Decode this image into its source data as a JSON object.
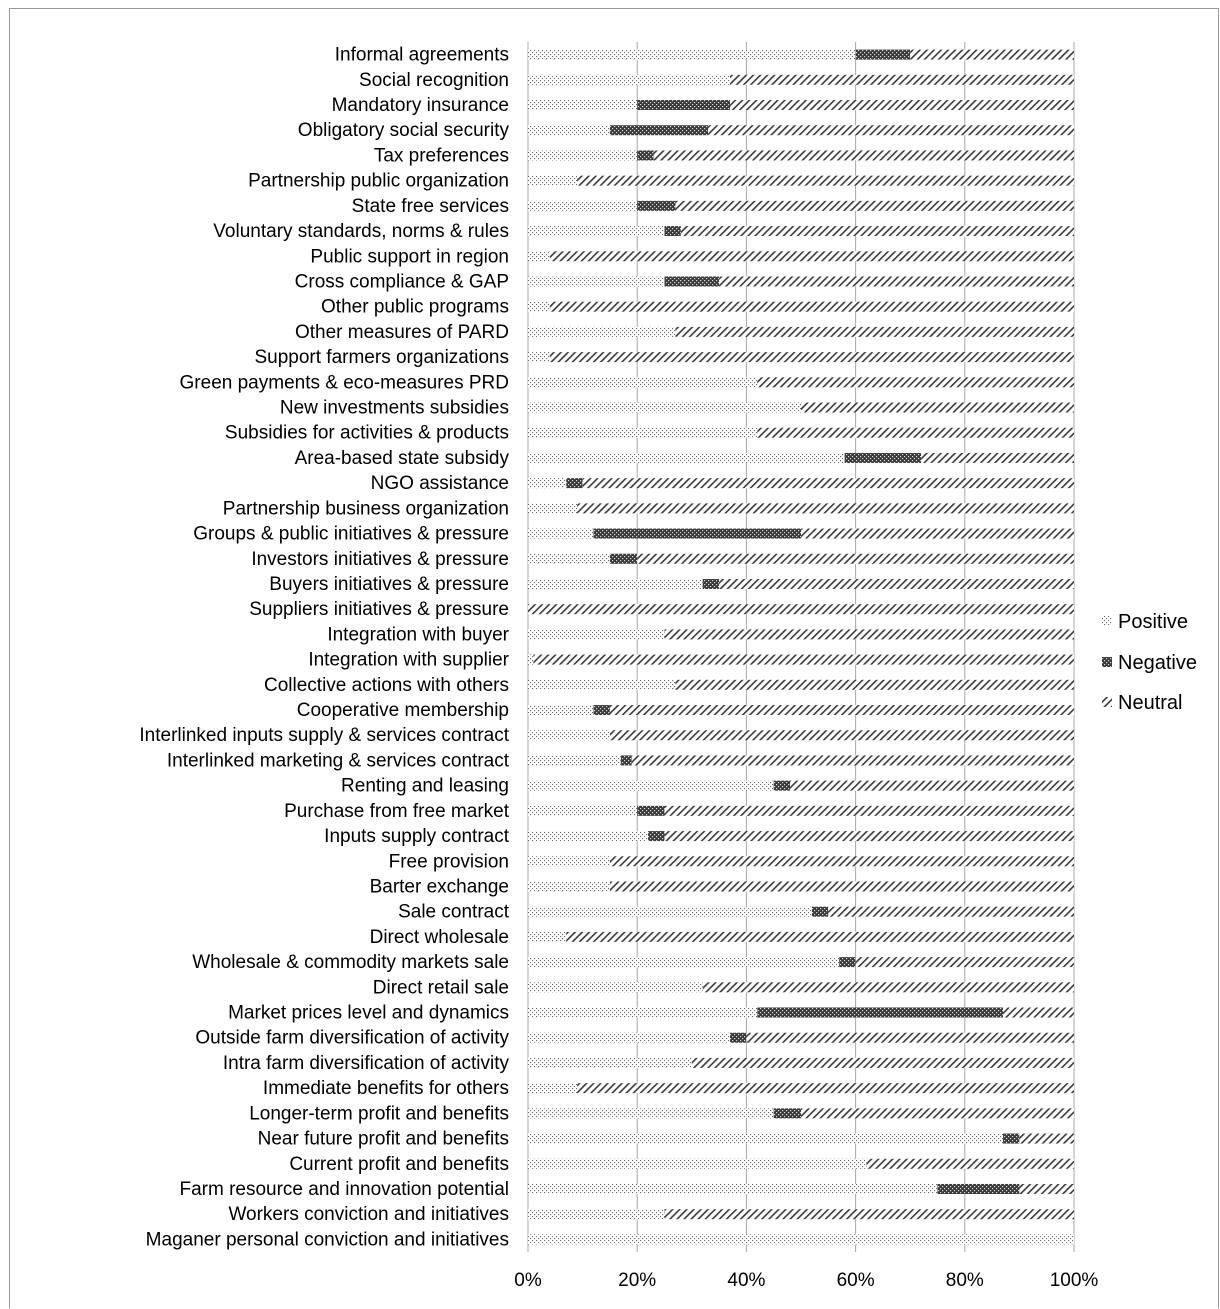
{
  "chart_data": {
    "type": "bar",
    "stacked": true,
    "orientation": "horizontal",
    "title": "",
    "xlabel": "",
    "ylabel": "",
    "xlim": [
      0,
      100
    ],
    "x_ticks": [
      "0%",
      "20%",
      "40%",
      "60%",
      "80%",
      "100%"
    ],
    "grid": "vertical",
    "legend_position": "right",
    "categories": [
      "Informal agreements",
      "Social recognition",
      "Mandatory insurance",
      "Obligatory social security",
      "Tax preferences",
      "Partnership public organization",
      "State free services",
      "Voluntary standards, norms & rules",
      "Public support in region",
      "Cross compliance & GAP",
      "Other public programs",
      "Other measures of PARD",
      "Support farmers organizations",
      "Green payments & eco-measures PRD",
      "New investments subsidies",
      "Subsidies for activities & products",
      "Area-based state subsidy",
      "NGO assistance",
      "Partnership business organization",
      "Groups & public initiatives & pressure",
      "Investors initiatives & pressure",
      "Buyers initiatives & pressure",
      "Suppliers initiatives & pressure",
      "Integration with buyer",
      "Integration with supplier",
      "Collective actions with others",
      "Cooperative membership",
      "Interlinked inputs supply & services contract",
      "Interlinked marketing & services contract",
      "Renting and leasing",
      "Purchase from free market",
      "Inputs supply contract",
      "Free provision",
      "Barter exchange",
      "Sale contract",
      "Direct wholesale",
      "Wholesale & commodity markets sale",
      "Direct retail sale",
      "Market prices level and dynamics",
      "Outside farm diversification of activity",
      "Intra farm diversification of activity",
      "Immediate benefits for others",
      "Longer-term profit and benefits",
      "Near future profit and benefits",
      "Current profit and benefits",
      "Farm resource and innovation potential",
      "Workers conviction and initiatives",
      "Maganer personal conviction and initiatives"
    ],
    "series": [
      {
        "name": "Positive",
        "values": [
          60,
          37,
          20,
          15,
          20,
          9,
          20,
          25,
          4,
          25,
          4,
          27,
          4,
          42,
          50,
          42,
          58,
          7,
          9,
          12,
          15,
          32,
          0,
          25,
          1,
          27,
          12,
          15,
          17,
          45,
          20,
          22,
          15,
          15,
          52,
          7,
          57,
          32,
          42,
          37,
          30,
          9,
          45,
          87,
          62,
          75,
          25,
          100
        ]
      },
      {
        "name": "Negative",
        "values": [
          10,
          0,
          17,
          18,
          3,
          0,
          7,
          3,
          0,
          10,
          0,
          0,
          0,
          0,
          0,
          0,
          14,
          3,
          0,
          38,
          5,
          3,
          0,
          0,
          0,
          0,
          3,
          0,
          2,
          3,
          5,
          3,
          0,
          0,
          3,
          0,
          3,
          0,
          45,
          3,
          0,
          0,
          5,
          3,
          0,
          15,
          0,
          0
        ]
      },
      {
        "name": "Neutral",
        "values": [
          30,
          63,
          63,
          67,
          77,
          91,
          73,
          72,
          96,
          65,
          96,
          73,
          96,
          58,
          50,
          58,
          28,
          90,
          91,
          50,
          80,
          65,
          100,
          75,
          99,
          73,
          85,
          85,
          81,
          52,
          75,
          75,
          85,
          85,
          45,
          93,
          40,
          68,
          13,
          60,
          70,
          91,
          50,
          10,
          38,
          10,
          75,
          0
        ]
      }
    ]
  },
  "colors": {
    "positive_dots": "#707070",
    "negative_fill": "#2e2e2e",
    "neutral_hatch": "#3a3a3a",
    "grid": "#a8a8a8",
    "frame": "#9a9a9a"
  },
  "legend": {
    "items": [
      "Positive",
      "Negative",
      "Neutral"
    ]
  }
}
